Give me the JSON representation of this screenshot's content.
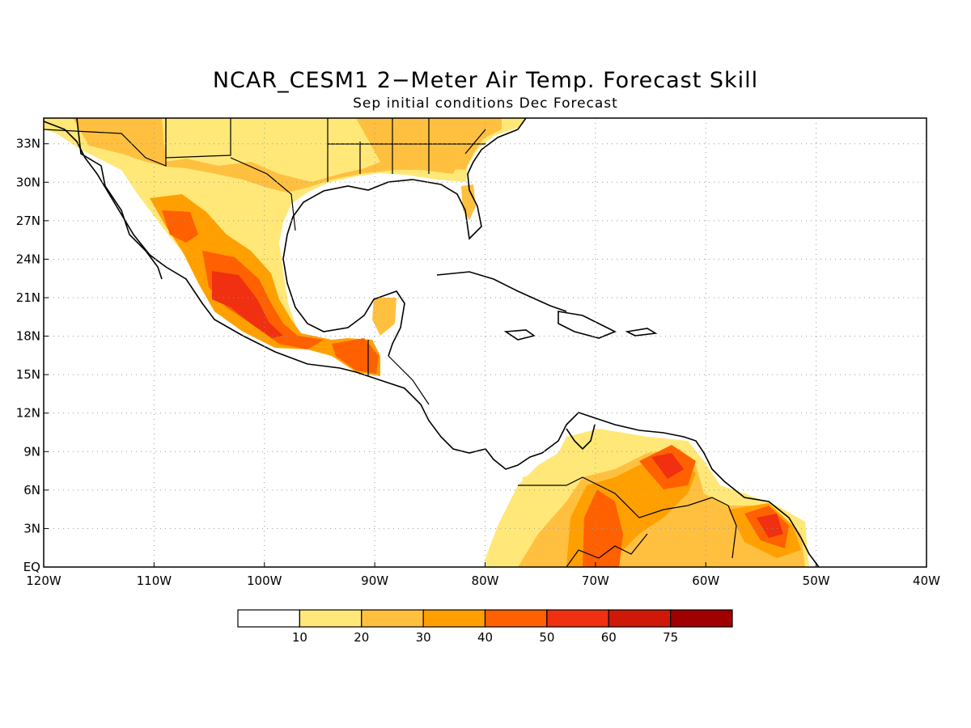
{
  "title": "NCAR_CESM1 2−Meter Air Temp. Forecast Skill",
  "subtitle": "Sep initial conditions  Dec Forecast",
  "map": {
    "lon_labels": [
      "120W",
      "110W",
      "100W",
      "90W",
      "80W",
      "70W",
      "60W",
      "50W",
      "40W"
    ],
    "lat_labels": [
      "EQ",
      "3N",
      "6N",
      "9N",
      "12N",
      "15N",
      "18N",
      "21N",
      "24N",
      "27N",
      "30N",
      "33N"
    ],
    "region": "Central America, Mexico, Caribbean and northern South America"
  },
  "colorbar": {
    "labels": [
      "10",
      "20",
      "30",
      "40",
      "50",
      "60",
      "75"
    ],
    "colors": [
      "#ffffff",
      "#ffe878",
      "#ffc040",
      "#ffa000",
      "#ff6000",
      "#f03010",
      "#d01808",
      "#a00000"
    ]
  }
}
